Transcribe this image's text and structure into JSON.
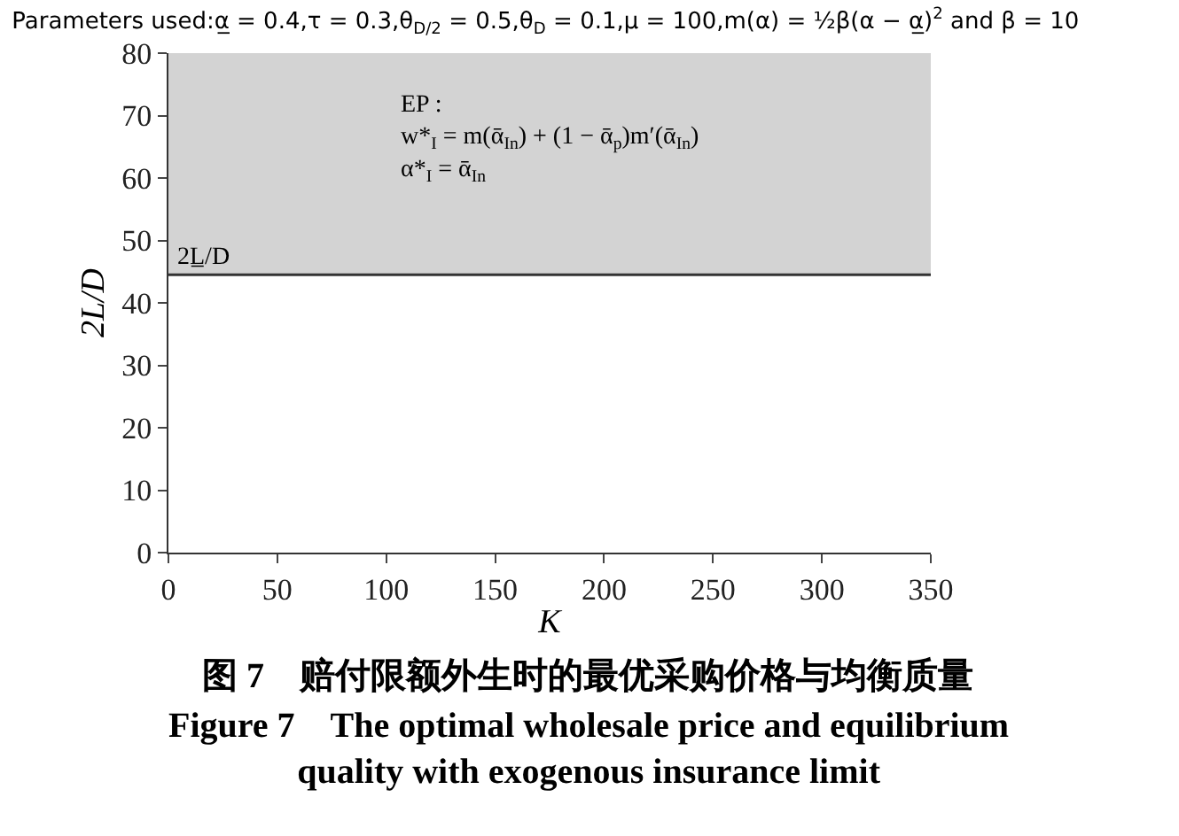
{
  "chart_data": {
    "type": "line",
    "x": [
      0,
      350
    ],
    "marker": "none",
    "series": [
      {
        "color": "#333333",
        "values": [
          44.5,
          44.5
        ],
        "line_style": "solid"
      }
    ],
    "title": "Parameters used:α̲ = 0.4,τ = 0.3,θ$_{D/2}$ = 0.5,θ$_{D}$ = 0.1,μ = 100,m(α) = ½β(α − α̲)$^{2}$ and β = 10",
    "xlabel": "K",
    "ylabel": "2L/D",
    "xlim": [
      0,
      350
    ],
    "xticks": [
      0,
      50,
      100,
      150,
      200,
      250,
      300,
      350
    ],
    "ylim": [
      0,
      80
    ],
    "yticks": [
      0,
      10,
      20,
      30,
      40,
      50,
      60,
      70,
      80
    ],
    "bands": [
      {
        "axis": "y",
        "from": 44.5,
        "to": 80,
        "color": "#d3d3d3",
        "label": "EP :\nw*$_{I}$ = m(ᾱ$_{In}$) + (1 − ᾱ$_{p}$)m′(ᾱ$_{In}$)\nα*$_{I}$ = ᾱ$_{In}$"
      }
    ],
    "annotations": [
      {
        "text": "2L̲/D",
        "x": 0,
        "y": 44.5
      },
      "图 7　赔付限额外生时的最优采购价格与均衡质量",
      "Figure 7　The optimal wholesale price and equilibrium\nquality with exogenous insurance limit"
    ]
  }
}
